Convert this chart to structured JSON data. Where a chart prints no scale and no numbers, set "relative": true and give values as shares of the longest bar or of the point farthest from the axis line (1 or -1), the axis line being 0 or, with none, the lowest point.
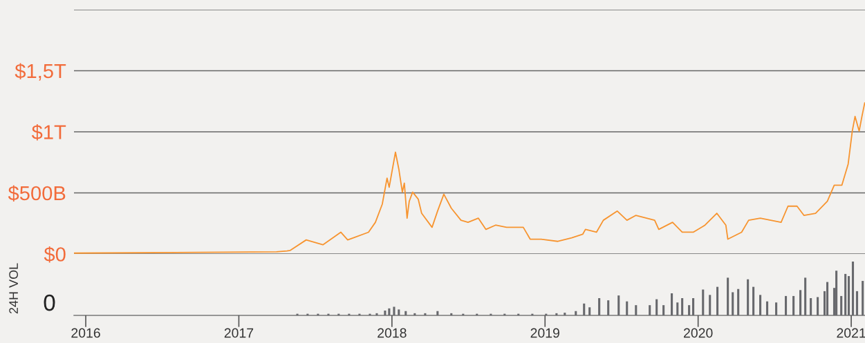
{
  "chart_data": [
    {
      "type": "line",
      "xlim": [
        2015.923,
        2021.09
      ],
      "xticks": [
        2016,
        2017,
        2018,
        2019,
        2020,
        2021
      ],
      "ylim": [
        0,
        2000000000000.0
      ],
      "yticks": [
        {
          "value": 0,
          "label": "$0"
        },
        {
          "value": 500000000000.0,
          "label": "$500B"
        },
        {
          "value": 1000000000000.0,
          "label": "$1T"
        },
        {
          "value": 1500000000000.0,
          "label": "$1,5T"
        },
        {
          "value": 2000000000000.0,
          "label": null
        }
      ],
      "grid": "y",
      "tick_labels": "y",
      "series": [
        {
          "color": "#f7942f",
          "x": [
            2015.923,
            2017.246,
            2017.314,
            2017.336,
            2017.44,
            2017.549,
            2017.666,
            2017.711,
            2017.847,
            2017.892,
            2017.937,
            2017.968,
            2017.982,
            2018.023,
            2018.045,
            2018.068,
            2018.081,
            2018.099,
            2018.113,
            2018.135,
            2018.172,
            2018.194,
            2018.262,
            2018.298,
            2018.339,
            2018.388,
            2018.451,
            2018.497,
            2018.564,
            2018.614,
            2018.677,
            2018.749,
            2018.858,
            2018.903,
            2018.975,
            2019.084,
            2019.174,
            2019.246,
            2019.264,
            2019.336,
            2019.381,
            2019.472,
            2019.535,
            2019.594,
            2019.716,
            2019.743,
            2019.833,
            2019.896,
            2019.968,
            2020.045,
            2020.122,
            2020.181,
            2020.194,
            2020.284,
            2020.33,
            2020.406,
            2020.542,
            2020.587,
            2020.646,
            2020.691,
            2020.767,
            2020.844,
            2020.889,
            2020.939,
            2020.98,
            2021.007,
            2021.025,
            2021.052,
            2021.07,
            2021.088
          ],
          "values": [
            7000000000.0,
            17000000000.0,
            25000000000.0,
            29000000000.0,
            115000000000.0,
            75000000000.0,
            178000000000.0,
            115000000000.0,
            178000000000.0,
            259000000000.0,
            408000000000.0,
            621000000000.0,
            546000000000.0,
            833000000000.0,
            695000000000.0,
            506000000000.0,
            580000000000.0,
            293000000000.0,
            431000000000.0,
            506000000000.0,
            448000000000.0,
            333000000000.0,
            218000000000.0,
            351000000000.0,
            489000000000.0,
            374000000000.0,
            276000000000.0,
            259000000000.0,
            293000000000.0,
            201000000000.0,
            236000000000.0,
            218000000000.0,
            218000000000.0,
            121000000000.0,
            121000000000.0,
            103000000000.0,
            132000000000.0,
            161000000000.0,
            201000000000.0,
            178000000000.0,
            276000000000.0,
            351000000000.0,
            276000000000.0,
            316000000000.0,
            276000000000.0,
            201000000000.0,
            259000000000.0,
            178000000000.0,
            178000000000.0,
            236000000000.0,
            333000000000.0,
            236000000000.0,
            121000000000.0,
            178000000000.0,
            276000000000.0,
            293000000000.0,
            259000000000.0,
            391000000000.0,
            391000000000.0,
            316000000000.0,
            333000000000.0,
            431000000000.0,
            563000000000.0,
            563000000000.0,
            736000000000.0,
            1006000000000.0,
            1126000000000.0,
            1006000000000.0,
            1126000000000.0,
            1236000000000.0
          ]
        }
      ]
    },
    {
      "type": "bar",
      "relative": true,
      "ylabel": "24H VOL",
      "annotations": [
        "0"
      ],
      "xlim": [
        2015.923,
        2021.09
      ],
      "xticks": [
        2016,
        2017,
        2018,
        2019,
        2020,
        2021
      ],
      "series": [
        {
          "color": "#68696d",
          "x": [
            2017.382,
            2017.449,
            2017.517,
            2017.585,
            2017.652,
            2017.72,
            2017.788,
            2017.856,
            2017.901,
            2017.955,
            2017.982,
            2018.014,
            2018.045,
            2018.09,
            2018.149,
            2018.217,
            2018.298,
            2018.388,
            2018.465,
            2018.555,
            2018.646,
            2018.736,
            2018.826,
            2018.917,
            2019.007,
            2019.075,
            2019.129,
            2019.201,
            2019.255,
            2019.291,
            2019.354,
            2019.413,
            2019.481,
            2019.535,
            2019.594,
            2019.684,
            2019.729,
            2019.774,
            2019.828,
            2019.865,
            2019.896,
            2019.941,
            2019.968,
            2020.032,
            2020.077,
            2020.126,
            2020.194,
            2020.226,
            2020.262,
            2020.325,
            2020.361,
            2020.406,
            2020.451,
            2020.51,
            2020.573,
            2020.623,
            2020.668,
            2020.7,
            2020.736,
            2020.781,
            2020.826,
            2020.844,
            2020.889,
            2020.903,
            2020.935,
            2020.962,
            2020.984,
            2021.011,
            2021.038,
            2021.075
          ],
          "values": [
            0.03,
            0.03,
            0.03,
            0.03,
            0.03,
            0.03,
            0.03,
            0.03,
            0.04,
            0.09,
            0.13,
            0.16,
            0.11,
            0.08,
            0.04,
            0.04,
            0.08,
            0.04,
            0.03,
            0.03,
            0.03,
            0.03,
            0.03,
            0.03,
            0.03,
            0.04,
            0.05,
            0.08,
            0.22,
            0.15,
            0.32,
            0.28,
            0.37,
            0.26,
            0.19,
            0.19,
            0.3,
            0.19,
            0.41,
            0.24,
            0.32,
            0.19,
            0.32,
            0.48,
            0.38,
            0.53,
            0.7,
            0.43,
            0.49,
            0.67,
            0.53,
            0.38,
            0.26,
            0.24,
            0.36,
            0.36,
            0.47,
            0.7,
            0.32,
            0.34,
            0.45,
            0.62,
            0.51,
            0.83,
            0.36,
            0.77,
            0.73,
            1.0,
            0.45,
            0.64
          ]
        }
      ]
    }
  ]
}
